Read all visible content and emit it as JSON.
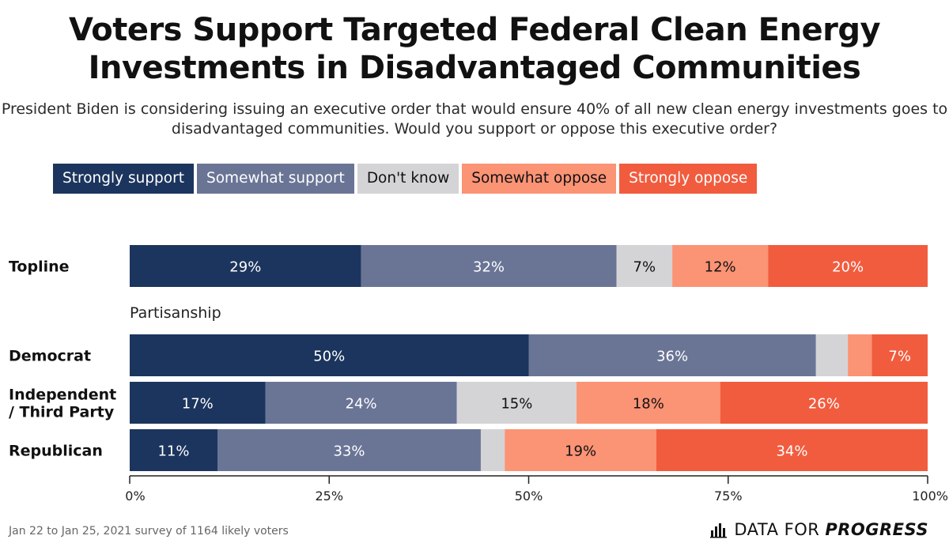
{
  "chart_data": {
    "type": "bar",
    "orientation": "horizontal-stacked",
    "title": "Voters Support Targeted Federal Clean Energy Investments in Disadvantaged Communities",
    "subtitle": "President Biden is considering issuing an executive order that would ensure 40% of all new clean energy investments goes to disadvantaged communities. Would you support or oppose this executive order?",
    "legend_placement": "top",
    "series": [
      {
        "name": "Strongly support",
        "color": "#1c355e",
        "text_color": "#ffffff"
      },
      {
        "name": "Somewhat support",
        "color": "#6a7596",
        "text_color": "#ffffff"
      },
      {
        "name": "Don't know",
        "color": "#d4d4d6",
        "text_color": "#111111"
      },
      {
        "name": "Somewhat oppose",
        "color": "#fb9375",
        "text_color": "#111111"
      },
      {
        "name": "Strongly oppose",
        "color": "#f15c3e",
        "text_color": "#ffffff"
      }
    ],
    "rows": [
      {
        "label": [
          "Topline"
        ],
        "values": [
          29,
          32,
          7,
          12,
          20
        ],
        "labels": [
          "29%",
          "32%",
          "7%",
          "12%",
          "20%"
        ]
      },
      {
        "label": [
          "Democrat"
        ],
        "values": [
          50,
          36,
          4,
          3,
          7
        ],
        "labels": [
          "50%",
          "36%",
          "",
          "",
          "7%"
        ]
      },
      {
        "label": [
          "Independent",
          "/ Third Party"
        ],
        "values": [
          17,
          24,
          15,
          18,
          26
        ],
        "labels": [
          "17%",
          "24%",
          "15%",
          "18%",
          "26%"
        ]
      },
      {
        "label": [
          "Republican"
        ],
        "values": [
          11,
          33,
          3,
          19,
          34
        ],
        "labels": [
          "11%",
          "33%",
          "",
          "19%",
          "34%"
        ]
      }
    ],
    "group_label": "Partisanship",
    "xlim": [
      0,
      100
    ],
    "xticks": [
      0,
      25,
      50,
      75,
      100
    ],
    "xtick_labels": [
      "0%",
      "25%",
      "50%",
      "75%",
      "100%"
    ]
  },
  "footer": {
    "note": "Jan 22 to Jan 25, 2021 survey of 1164 likely voters",
    "brand_regular": "DATA FOR",
    "brand_bold": "PROGRESS",
    "brand_icon": "bar-chart-icon"
  }
}
